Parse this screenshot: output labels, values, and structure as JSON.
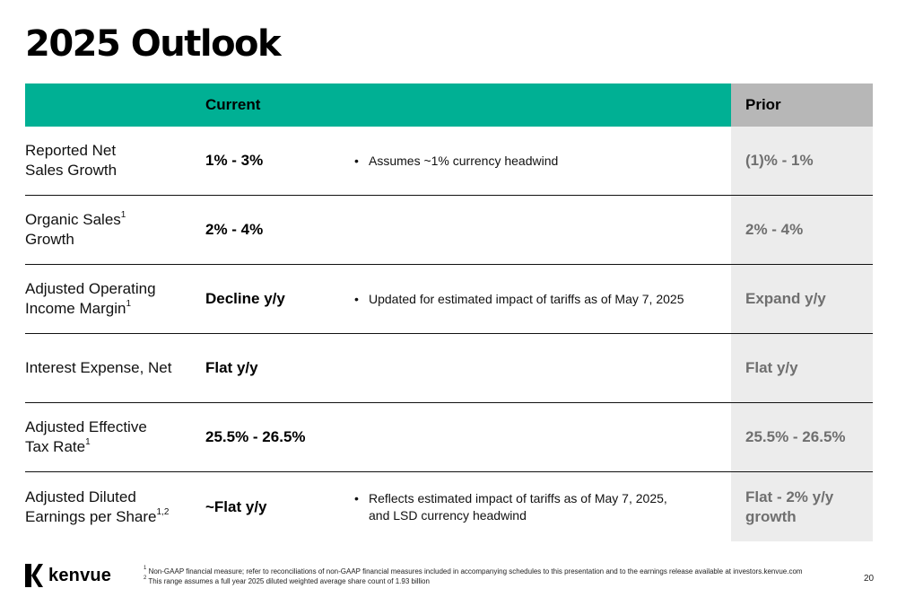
{
  "page": {
    "title": "2025 Outlook",
    "page_number": "20"
  },
  "table": {
    "header_current": "Current",
    "header_prior": "Prior",
    "rows": [
      {
        "metric_line1": "Reported Net",
        "metric_line2": "Sales Growth",
        "metric_sup": "",
        "current": "1% - 3%",
        "note_line1": "Assumes ~1% currency headwind",
        "note_line2": "",
        "prior_line1": "(1)% - 1%",
        "prior_line2": ""
      },
      {
        "metric_line1": "Organic Sales",
        "metric_line1_sup": "1",
        "metric_line2": "Growth",
        "metric_sup": "",
        "current": "2% - 4%",
        "note_line1": "",
        "note_line2": "",
        "prior_line1": "2% - 4%",
        "prior_line2": ""
      },
      {
        "metric_line1": "Adjusted Operating",
        "metric_line2": "Income Margin",
        "metric_sup": "1",
        "current": "Decline y/y",
        "note_line1": "Updated for estimated impact of tariffs as of May 7, 2025",
        "note_line2": "",
        "prior_line1": "Expand y/y",
        "prior_line2": ""
      },
      {
        "metric_line1": "Interest Expense, Net",
        "metric_line2": "",
        "metric_sup": "",
        "current": "Flat y/y",
        "note_line1": "",
        "note_line2": "",
        "prior_line1": "Flat y/y",
        "prior_line2": ""
      },
      {
        "metric_line1": "Adjusted Effective",
        "metric_line2": "Tax Rate",
        "metric_sup": "1",
        "current": "25.5% - 26.5%",
        "note_line1": "",
        "note_line2": "",
        "prior_line1": "25.5% - 26.5%",
        "prior_line2": ""
      },
      {
        "metric_line1": "Adjusted Diluted",
        "metric_line2": "Earnings per Share",
        "metric_sup": "1,2",
        "current": "~Flat y/y",
        "note_line1": "Reflects estimated impact of tariffs as of May 7, 2025,",
        "note_line2": "and LSD currency headwind",
        "prior_line1": "Flat - 2% y/y",
        "prior_line2": "growth"
      }
    ]
  },
  "footer": {
    "logo_text": "kenvue",
    "footnote1_sup": "1",
    "footnote1": "Non-GAAP financial measure; refer to reconciliations of non-GAAP financial measures included in accompanying schedules to this presentation and to the earnings release available at investors.kenvue.com",
    "footnote2_sup": "2",
    "footnote2": "This range assumes a full year 2025 diluted weighted average share count of 1.93 billion"
  },
  "colors": {
    "header_current_bg": "#00b094",
    "header_prior_bg": "#b7b7b7",
    "prior_cell_bg": "#ececec",
    "prior_text": "#6f6f6f"
  }
}
